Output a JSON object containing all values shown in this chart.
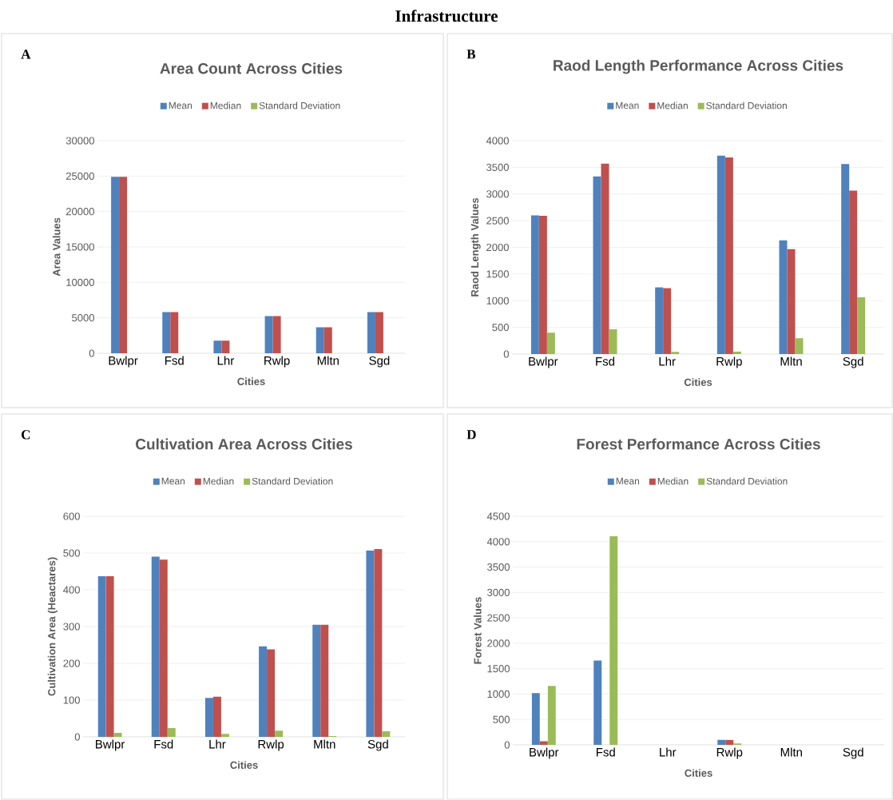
{
  "chart_data": [
    {
      "type": "bar",
      "title": "Area Count Across Cities",
      "xlabel": "Cities",
      "ylabel": "Area Values",
      "annotations": [
        "Infrastructure",
        "A"
      ],
      "categories": [
        "Bwlpr",
        "Fsd",
        "Lhr",
        "Rwlp",
        "Mltn",
        "Sgd"
      ],
      "ylim": [
        0,
        30000
      ],
      "yticks": [
        0,
        5000,
        10000,
        15000,
        20000,
        25000,
        30000
      ],
      "grid": "y",
      "legend": "top",
      "series": [
        {
          "name": "Mean",
          "color": "#4f81bd",
          "values": [
            24900,
            5800,
            1770,
            5240,
            3670,
            5800
          ]
        },
        {
          "name": "Median",
          "color": "#c0504d",
          "values": [
            24900,
            5800,
            1770,
            5240,
            3670,
            5800
          ]
        },
        {
          "name": "Standard Deviation",
          "color": "#9bbb59",
          "values": [
            0,
            0,
            0,
            0,
            0,
            0
          ]
        }
      ]
    },
    {
      "type": "bar",
      "title": "Raod Length Performance Across Cities",
      "xlabel": "Cities",
      "ylabel": "Raod Length Values",
      "annotations": [
        "B"
      ],
      "categories": [
        "Bwlpr",
        "Fsd",
        "Lhr",
        "Rwlp",
        "Mltn",
        "Sgd"
      ],
      "ylim": [
        0,
        4000
      ],
      "yticks": [
        0,
        500,
        1000,
        1500,
        2000,
        2500,
        3000,
        3500,
        4000
      ],
      "grid": "y",
      "legend": "top",
      "series": [
        {
          "name": "Mean",
          "color": "#4f81bd",
          "values": [
            2600,
            3330,
            1250,
            3720,
            2130,
            3560
          ]
        },
        {
          "name": "Median",
          "color": "#c0504d",
          "values": [
            2590,
            3570,
            1235,
            3685,
            1965,
            3065
          ]
        },
        {
          "name": "Standard Deviation",
          "color": "#9bbb59",
          "values": [
            400,
            465,
            40,
            45,
            295,
            1065
          ]
        }
      ]
    },
    {
      "type": "bar",
      "title": "Cultivation Area Across Cities",
      "xlabel": "Cities",
      "ylabel": "Cultivation Area (Heactares)",
      "annotations": [
        "C"
      ],
      "categories": [
        "Bwlpr",
        "Fsd",
        "Lhr",
        "Rwlp",
        "Mltn",
        "Sgd"
      ],
      "ylim": [
        0,
        600
      ],
      "yticks": [
        0,
        100,
        200,
        300,
        400,
        500,
        600
      ],
      "grid": "y",
      "legend": "top",
      "series": [
        {
          "name": "Mean",
          "color": "#4f81bd",
          "values": [
            437,
            490,
            106,
            246,
            305,
            507
          ]
        },
        {
          "name": "Median",
          "color": "#c0504d",
          "values": [
            437,
            482,
            109,
            238,
            305,
            511
          ]
        },
        {
          "name": "Standard Deviation",
          "color": "#9bbb59",
          "values": [
            11,
            24,
            8,
            17,
            2,
            15
          ]
        }
      ]
    },
    {
      "type": "bar",
      "title": "Forest Performance Across Cities",
      "xlabel": "Cities",
      "ylabel": "Forest Values",
      "annotations": [
        "D"
      ],
      "categories": [
        "Bwlpr",
        "Fsd",
        "Lhr",
        "Rwlp",
        "Mltn",
        "Sgd"
      ],
      "ylim": [
        0,
        4500
      ],
      "yticks": [
        0,
        500,
        1000,
        1500,
        2000,
        2500,
        3000,
        3500,
        4000,
        4500
      ],
      "grid": "y",
      "legend": "top",
      "series": [
        {
          "name": "Mean",
          "color": "#4f81bd",
          "values": [
            1020,
            1660,
            0,
            100,
            0,
            0
          ]
        },
        {
          "name": "Median",
          "color": "#c0504d",
          "values": [
            70,
            0,
            0,
            100,
            0,
            0
          ]
        },
        {
          "name": "Standard Deviation",
          "color": "#9bbb59",
          "values": [
            1160,
            4105,
            0,
            28,
            0,
            0
          ]
        }
      ]
    }
  ]
}
